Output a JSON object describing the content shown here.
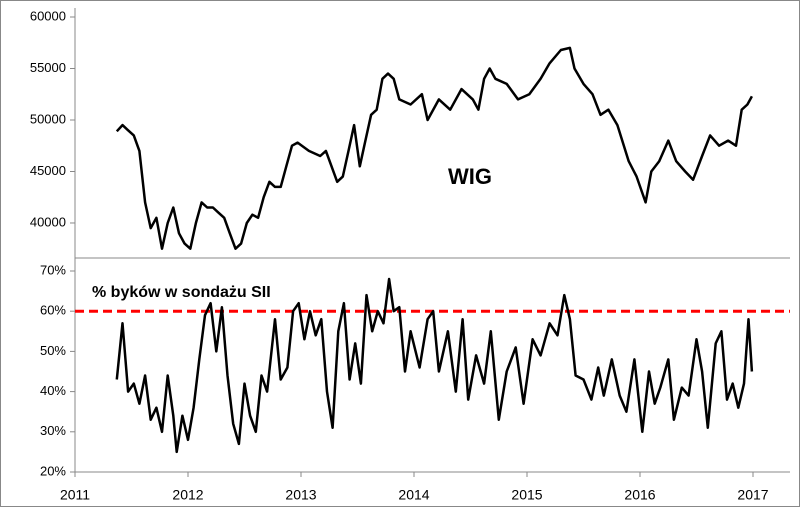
{
  "chart_data": [
    {
      "type": "line",
      "xlim": [
        2011,
        2017
      ],
      "ylim": [
        36600,
        60000
      ],
      "yticks": [
        40000,
        45000,
        50000,
        55000,
        60000
      ],
      "series": [
        {
          "name": "WIG",
          "color": "#000000",
          "x": [
            2011.37,
            2011.42,
            2011.47,
            2011.52,
            2011.57,
            2011.62,
            2011.67,
            2011.72,
            2011.77,
            2011.82,
            2011.87,
            2011.92,
            2011.97,
            2012.02,
            2012.07,
            2012.12,
            2012.17,
            2012.22,
            2012.27,
            2012.32,
            2012.37,
            2012.42,
            2012.47,
            2012.52,
            2012.57,
            2012.62,
            2012.67,
            2012.72,
            2012.77,
            2012.82,
            2012.87,
            2012.92,
            2012.97,
            2013.07,
            2013.17,
            2013.22,
            2013.32,
            2013.37,
            2013.42,
            2013.47,
            2013.52,
            2013.57,
            2013.62,
            2013.67,
            2013.72,
            2013.77,
            2013.82,
            2013.87,
            2013.97,
            2014.07,
            2014.12,
            2014.22,
            2014.32,
            2014.42,
            2014.52,
            2014.57,
            2014.62,
            2014.67,
            2014.72,
            2014.82,
            2014.92,
            2015.02,
            2015.12,
            2015.2,
            2015.3,
            2015.38,
            2015.42,
            2015.5,
            2015.58,
            2015.65,
            2015.72,
            2015.8,
            2015.9,
            2015.97,
            2016.05,
            2016.1,
            2016.17,
            2016.25,
            2016.32,
            2016.4,
            2016.47,
            2016.55,
            2016.62,
            2016.7,
            2016.78,
            2016.85,
            2016.9,
            2016.95,
            2016.99
          ],
          "values": [
            48900,
            49500,
            49000,
            48500,
            47000,
            42000,
            39500,
            40500,
            37500,
            40000,
            41500,
            39000,
            38000,
            37500,
            40000,
            42000,
            41500,
            41500,
            41000,
            40500,
            39000,
            37500,
            38000,
            40000,
            40800,
            40500,
            42500,
            44000,
            43500,
            43500,
            45500,
            47500,
            47800,
            47000,
            46500,
            47000,
            44000,
            44500,
            47000,
            49500,
            45500,
            48000,
            50500,
            51000,
            54000,
            54500,
            54000,
            52000,
            51500,
            52500,
            50000,
            52000,
            51000,
            53000,
            52000,
            51000,
            54000,
            55000,
            54000,
            53500,
            52000,
            52500,
            54000,
            55500,
            56800,
            57000,
            55000,
            53500,
            52500,
            50500,
            51000,
            49500,
            46000,
            44500,
            42000,
            45000,
            46000,
            48000,
            46000,
            45000,
            44200,
            46500,
            48500,
            47500,
            48000,
            47500,
            51000,
            51500,
            52300
          ]
        }
      ]
    },
    {
      "type": "line",
      "xlim": [
        2011,
        2017
      ],
      "ylim": [
        20,
        70
      ],
      "yticks": [
        {
          "value": 20,
          "label": "20%"
        },
        {
          "value": 30,
          "label": "30%"
        },
        {
          "value": 40,
          "label": "40%"
        },
        {
          "value": 50,
          "label": "50%"
        },
        {
          "value": 60,
          "label": "60%"
        },
        {
          "value": 70,
          "label": "70%"
        }
      ],
      "xticks": [
        2011,
        2012,
        2013,
        2014,
        2015,
        2016,
        2017
      ],
      "reference_line": {
        "value": 60,
        "color": "#ff0000"
      },
      "series": [
        {
          "name": "% byków w sondażu SII",
          "color": "#000000",
          "x": [
            2011.37,
            2011.42,
            2011.47,
            2011.52,
            2011.57,
            2011.62,
            2011.67,
            2011.72,
            2011.77,
            2011.82,
            2011.87,
            2011.9,
            2011.95,
            2012.0,
            2012.05,
            2012.1,
            2012.15,
            2012.2,
            2012.25,
            2012.3,
            2012.35,
            2012.4,
            2012.45,
            2012.5,
            2012.55,
            2012.6,
            2012.65,
            2012.7,
            2012.77,
            2012.82,
            2012.88,
            2012.93,
            2012.98,
            2013.03,
            2013.08,
            2013.13,
            2013.18,
            2013.23,
            2013.28,
            2013.33,
            2013.38,
            2013.43,
            2013.48,
            2013.53,
            2013.58,
            2013.63,
            2013.68,
            2013.73,
            2013.78,
            2013.82,
            2013.87,
            2013.92,
            2013.97,
            2014.05,
            2014.12,
            2014.17,
            2014.22,
            2014.3,
            2014.37,
            2014.43,
            2014.48,
            2014.55,
            2014.62,
            2014.68,
            2014.75,
            2014.82,
            2014.9,
            2014.97,
            2015.05,
            2015.12,
            2015.2,
            2015.27,
            2015.33,
            2015.38,
            2015.43,
            2015.5,
            2015.57,
            2015.63,
            2015.68,
            2015.75,
            2015.82,
            2015.88,
            2015.95,
            2016.02,
            2016.08,
            2016.13,
            2016.18,
            2016.25,
            2016.3,
            2016.37,
            2016.43,
            2016.5,
            2016.55,
            2016.6,
            2016.67,
            2016.72,
            2016.77,
            2016.82,
            2016.87,
            2016.92,
            2016.96,
            2016.99
          ],
          "values": [
            43,
            57,
            40,
            42,
            37,
            44,
            33,
            36,
            30,
            44,
            34,
            25,
            34,
            28,
            36,
            48,
            59,
            62,
            50,
            61,
            44,
            32,
            27,
            42,
            34,
            30,
            44,
            40,
            58,
            43,
            46,
            60,
            62,
            53,
            60,
            54,
            58,
            40,
            31,
            55,
            62,
            43,
            52,
            42,
            64,
            55,
            60,
            57,
            68,
            60,
            61,
            45,
            55,
            46,
            58,
            60,
            45,
            55,
            40,
            58,
            38,
            49,
            42,
            55,
            33,
            45,
            51,
            37,
            53,
            49,
            57,
            54,
            64,
            58,
            44,
            43,
            38,
            46,
            39,
            48,
            39,
            35,
            48,
            30,
            45,
            37,
            41,
            48,
            33,
            41,
            39,
            53,
            45,
            31,
            52,
            55,
            38,
            42,
            36,
            42,
            58,
            45
          ]
        }
      ]
    }
  ]
}
